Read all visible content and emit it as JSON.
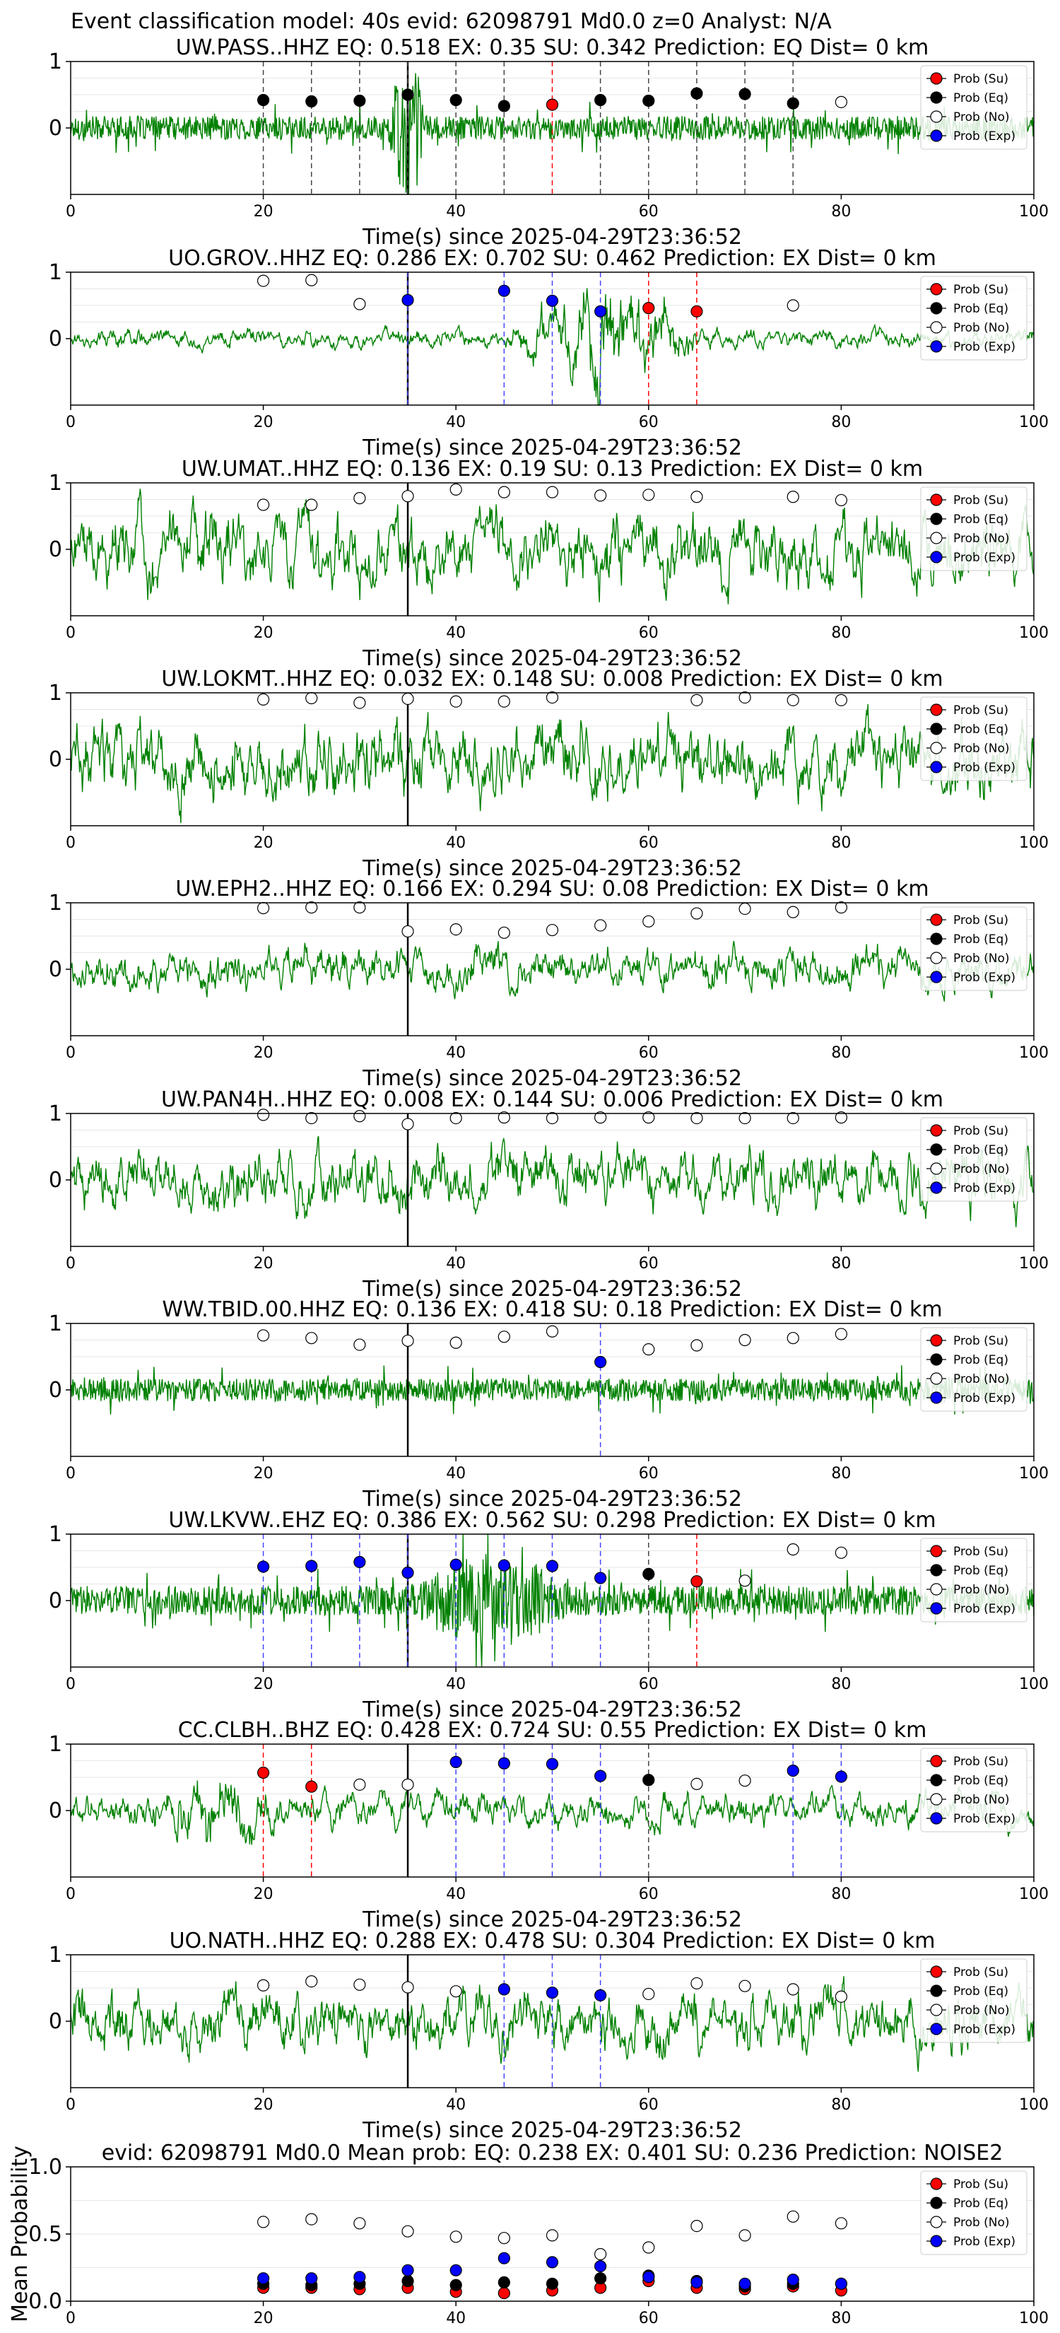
{
  "figure_title": "Event classification model: 40s evid: 62098791 Md0.0 z=0 Analyst: N/A",
  "colors": {
    "waveform": "#008000",
    "su": "#ff0000",
    "eq": "#000000",
    "no": "#ffffff",
    "exp": "#0000ff",
    "pick_line": "#000000"
  },
  "legend_entries": [
    "Prob (Su)",
    "Prob (Eq)",
    "Prob (No)",
    "Prob (Exp)"
  ],
  "chart_data": [
    {
      "type": "line+scatter",
      "title": "UW.PASS..HHZ   EQ: 0.518  EX: 0.35  SU: 0.342   Prediction: EQ    Dist= 0 km",
      "xlabel": "Time(s) since 2025-04-29T23:36:52",
      "xlim": [
        0,
        100
      ],
      "ylim": [
        -1,
        1
      ],
      "xticks": [
        "0",
        "20",
        "40",
        "60",
        "80",
        "100"
      ],
      "yticks": [
        "1",
        "0"
      ],
      "pick_time": 35,
      "noise_amp": 0.18,
      "noise_kind": "spiky",
      "burst": {
        "start": 33,
        "end": 37,
        "amp": 1.3
      },
      "points": [
        {
          "x": 20,
          "y": 0.42,
          "cls": "eq"
        },
        {
          "x": 25,
          "y": 0.4,
          "cls": "eq"
        },
        {
          "x": 30,
          "y": 0.41,
          "cls": "eq"
        },
        {
          "x": 35,
          "y": 0.5,
          "cls": "eq"
        },
        {
          "x": 40,
          "y": 0.42,
          "cls": "eq"
        },
        {
          "x": 45,
          "y": 0.33,
          "cls": "eq"
        },
        {
          "x": 50,
          "y": 0.35,
          "cls": "su"
        },
        {
          "x": 55,
          "y": 0.42,
          "cls": "eq"
        },
        {
          "x": 60,
          "y": 0.41,
          "cls": "eq"
        },
        {
          "x": 65,
          "y": 0.52,
          "cls": "eq"
        },
        {
          "x": 70,
          "y": 0.51,
          "cls": "eq"
        },
        {
          "x": 75,
          "y": 0.37,
          "cls": "eq"
        },
        {
          "x": 80,
          "y": 0.39,
          "cls": "no"
        }
      ]
    },
    {
      "type": "line+scatter",
      "title": "UO.GROV..HHZ   EQ: 0.286  EX: 0.702  SU: 0.462   Prediction: EX    Dist= 0 km",
      "xlabel": "Time(s) since 2025-04-29T23:36:52",
      "xlim": [
        0,
        100
      ],
      "ylim": [
        -1,
        1
      ],
      "xticks": [
        "0",
        "20",
        "40",
        "60",
        "80",
        "100"
      ],
      "yticks": [
        "1",
        "0"
      ],
      "pick_time": 35,
      "noise_amp": 0.14,
      "noise_kind": "smooth",
      "burst": {
        "start": 45,
        "end": 66,
        "amp": 0.95
      },
      "points": [
        {
          "x": 20,
          "y": 0.87,
          "cls": "no"
        },
        {
          "x": 25,
          "y": 0.88,
          "cls": "no"
        },
        {
          "x": 30,
          "y": 0.52,
          "cls": "no"
        },
        {
          "x": 35,
          "y": 0.58,
          "cls": "exp"
        },
        {
          "x": 45,
          "y": 0.72,
          "cls": "exp"
        },
        {
          "x": 50,
          "y": 0.57,
          "cls": "exp"
        },
        {
          "x": 55,
          "y": 0.41,
          "cls": "exp"
        },
        {
          "x": 60,
          "y": 0.46,
          "cls": "su"
        },
        {
          "x": 65,
          "y": 0.41,
          "cls": "su"
        },
        {
          "x": 75,
          "y": 0.5,
          "cls": "no"
        }
      ]
    },
    {
      "type": "line+scatter",
      "title": "UW.UMAT..HHZ   EQ: 0.136  EX: 0.19  SU: 0.13   Prediction: EX    Dist= 0 km",
      "xlabel": "Time(s) since 2025-04-29T23:36:52",
      "xlim": [
        0,
        100
      ],
      "ylim": [
        -1,
        1
      ],
      "xticks": [
        "0",
        "20",
        "40",
        "60",
        "80",
        "100"
      ],
      "yticks": [
        "1",
        "0"
      ],
      "pick_time": 35,
      "noise_amp": 0.55,
      "noise_kind": "smooth",
      "points": [
        {
          "x": 20,
          "y": 0.67,
          "cls": "no"
        },
        {
          "x": 25,
          "y": 0.67,
          "cls": "no"
        },
        {
          "x": 30,
          "y": 0.77,
          "cls": "no"
        },
        {
          "x": 35,
          "y": 0.8,
          "cls": "no"
        },
        {
          "x": 40,
          "y": 0.9,
          "cls": "no"
        },
        {
          "x": 45,
          "y": 0.86,
          "cls": "no"
        },
        {
          "x": 50,
          "y": 0.86,
          "cls": "no"
        },
        {
          "x": 55,
          "y": 0.81,
          "cls": "no"
        },
        {
          "x": 60,
          "y": 0.82,
          "cls": "no"
        },
        {
          "x": 65,
          "y": 0.79,
          "cls": "no"
        },
        {
          "x": 75,
          "y": 0.79,
          "cls": "no"
        },
        {
          "x": 80,
          "y": 0.74,
          "cls": "no"
        }
      ]
    },
    {
      "type": "line+scatter",
      "title": "UW.LOKMT..HHZ   EQ: 0.032  EX: 0.148  SU: 0.008   Prediction: EX    Dist= 0 km",
      "xlabel": "Time(s) since 2025-04-29T23:36:52",
      "xlim": [
        0,
        100
      ],
      "ylim": [
        -1,
        1
      ],
      "xticks": [
        "0",
        "20",
        "40",
        "60",
        "80",
        "100"
      ],
      "yticks": [
        "1",
        "0"
      ],
      "pick_time": 35,
      "noise_amp": 0.55,
      "noise_kind": "smooth",
      "points": [
        {
          "x": 20,
          "y": 0.9,
          "cls": "no"
        },
        {
          "x": 25,
          "y": 0.92,
          "cls": "no"
        },
        {
          "x": 30,
          "y": 0.85,
          "cls": "no"
        },
        {
          "x": 35,
          "y": 0.91,
          "cls": "no"
        },
        {
          "x": 40,
          "y": 0.87,
          "cls": "no"
        },
        {
          "x": 45,
          "y": 0.87,
          "cls": "no"
        },
        {
          "x": 50,
          "y": 0.93,
          "cls": "no"
        },
        {
          "x": 65,
          "y": 0.89,
          "cls": "no"
        },
        {
          "x": 70,
          "y": 0.93,
          "cls": "no"
        },
        {
          "x": 75,
          "y": 0.89,
          "cls": "no"
        },
        {
          "x": 80,
          "y": 0.89,
          "cls": "no"
        }
      ]
    },
    {
      "type": "line+scatter",
      "title": "UW.EPH2..HHZ   EQ: 0.166  EX: 0.294  SU: 0.08   Prediction: EX    Dist= 0 km",
      "xlabel": "Time(s) since 2025-04-29T23:36:52",
      "xlim": [
        0,
        100
      ],
      "ylim": [
        -1,
        1
      ],
      "xticks": [
        "0",
        "20",
        "40",
        "60",
        "80",
        "100"
      ],
      "yticks": [
        "1",
        "0"
      ],
      "pick_time": 35,
      "noise_amp": 0.32,
      "noise_kind": "smooth",
      "points": [
        {
          "x": 20,
          "y": 0.92,
          "cls": "no"
        },
        {
          "x": 25,
          "y": 0.93,
          "cls": "no"
        },
        {
          "x": 30,
          "y": 0.93,
          "cls": "no"
        },
        {
          "x": 35,
          "y": 0.57,
          "cls": "no"
        },
        {
          "x": 40,
          "y": 0.6,
          "cls": "no"
        },
        {
          "x": 45,
          "y": 0.55,
          "cls": "no"
        },
        {
          "x": 50,
          "y": 0.59,
          "cls": "no"
        },
        {
          "x": 55,
          "y": 0.66,
          "cls": "no"
        },
        {
          "x": 60,
          "y": 0.72,
          "cls": "no"
        },
        {
          "x": 65,
          "y": 0.84,
          "cls": "no"
        },
        {
          "x": 70,
          "y": 0.91,
          "cls": "no"
        },
        {
          "x": 75,
          "y": 0.86,
          "cls": "no"
        },
        {
          "x": 80,
          "y": 0.93,
          "cls": "no"
        }
      ]
    },
    {
      "type": "line+scatter",
      "title": "UW.PAN4H..HHZ   EQ: 0.008  EX: 0.144  SU: 0.006   Prediction: EX    Dist= 0 km",
      "xlabel": "Time(s) since 2025-04-29T23:36:52",
      "xlim": [
        0,
        100
      ],
      "ylim": [
        -1,
        1
      ],
      "xticks": [
        "0",
        "20",
        "40",
        "60",
        "80",
        "100"
      ],
      "yticks": [
        "1",
        "0"
      ],
      "pick_time": 35,
      "noise_amp": 0.45,
      "noise_kind": "smooth",
      "points": [
        {
          "x": 20,
          "y": 0.98,
          "cls": "no"
        },
        {
          "x": 25,
          "y": 0.93,
          "cls": "no"
        },
        {
          "x": 30,
          "y": 0.96,
          "cls": "no"
        },
        {
          "x": 35,
          "y": 0.84,
          "cls": "no"
        },
        {
          "x": 40,
          "y": 0.93,
          "cls": "no"
        },
        {
          "x": 45,
          "y": 0.94,
          "cls": "no"
        },
        {
          "x": 50,
          "y": 0.93,
          "cls": "no"
        },
        {
          "x": 55,
          "y": 0.94,
          "cls": "no"
        },
        {
          "x": 60,
          "y": 0.94,
          "cls": "no"
        },
        {
          "x": 65,
          "y": 0.93,
          "cls": "no"
        },
        {
          "x": 70,
          "y": 0.93,
          "cls": "no"
        },
        {
          "x": 75,
          "y": 0.93,
          "cls": "no"
        },
        {
          "x": 80,
          "y": 0.94,
          "cls": "no"
        }
      ]
    },
    {
      "type": "line+scatter",
      "title": "WW.TBID.00.HHZ   EQ: 0.136  EX: 0.418  SU: 0.18   Prediction: EX    Dist= 0 km",
      "xlabel": "Time(s) since 2025-04-29T23:36:52",
      "xlim": [
        0,
        100
      ],
      "ylim": [
        -1,
        1
      ],
      "xticks": [
        "0",
        "20",
        "40",
        "60",
        "80",
        "100"
      ],
      "yticks": [
        "1",
        "0"
      ],
      "pick_time": 35,
      "noise_amp": 0.17,
      "noise_kind": "spiky",
      "points": [
        {
          "x": 20,
          "y": 0.82,
          "cls": "no"
        },
        {
          "x": 25,
          "y": 0.78,
          "cls": "no"
        },
        {
          "x": 30,
          "y": 0.68,
          "cls": "no"
        },
        {
          "x": 35,
          "y": 0.74,
          "cls": "no"
        },
        {
          "x": 40,
          "y": 0.71,
          "cls": "no"
        },
        {
          "x": 45,
          "y": 0.8,
          "cls": "no"
        },
        {
          "x": 50,
          "y": 0.88,
          "cls": "no"
        },
        {
          "x": 55,
          "y": 0.42,
          "cls": "exp"
        },
        {
          "x": 60,
          "y": 0.61,
          "cls": "no"
        },
        {
          "x": 65,
          "y": 0.67,
          "cls": "no"
        },
        {
          "x": 70,
          "y": 0.75,
          "cls": "no"
        },
        {
          "x": 75,
          "y": 0.78,
          "cls": "no"
        },
        {
          "x": 80,
          "y": 0.84,
          "cls": "no"
        }
      ]
    },
    {
      "type": "line+scatter",
      "title": "UW.LKVW..EHZ   EQ: 0.386  EX: 0.562  SU: 0.298   Prediction: EX    Dist= 0 km",
      "xlabel": "Time(s) since 2025-04-29T23:36:52",
      "xlim": [
        0,
        100
      ],
      "ylim": [
        -1,
        1
      ],
      "xticks": [
        "0",
        "20",
        "40",
        "60",
        "80",
        "100"
      ],
      "yticks": [
        "1",
        "0"
      ],
      "pick_time": 35,
      "noise_amp": 0.22,
      "noise_kind": "spiky",
      "burst": {
        "start": 35,
        "end": 52,
        "amp": 0.75
      },
      "points": [
        {
          "x": 20,
          "y": 0.51,
          "cls": "exp"
        },
        {
          "x": 25,
          "y": 0.52,
          "cls": "exp"
        },
        {
          "x": 30,
          "y": 0.58,
          "cls": "exp"
        },
        {
          "x": 35,
          "y": 0.42,
          "cls": "exp"
        },
        {
          "x": 40,
          "y": 0.54,
          "cls": "exp"
        },
        {
          "x": 45,
          "y": 0.53,
          "cls": "exp"
        },
        {
          "x": 50,
          "y": 0.52,
          "cls": "exp"
        },
        {
          "x": 55,
          "y": 0.34,
          "cls": "exp"
        },
        {
          "x": 60,
          "y": 0.4,
          "cls": "eq"
        },
        {
          "x": 65,
          "y": 0.29,
          "cls": "su"
        },
        {
          "x": 70,
          "y": 0.3,
          "cls": "no"
        },
        {
          "x": 75,
          "y": 0.77,
          "cls": "no"
        },
        {
          "x": 80,
          "y": 0.72,
          "cls": "no"
        }
      ]
    },
    {
      "type": "line+scatter",
      "title": "CC.CLBH..BHZ   EQ: 0.428  EX: 0.724  SU: 0.55   Prediction: EX    Dist= 0 km",
      "xlabel": "Time(s) since 2025-04-29T23:36:52",
      "xlim": [
        0,
        100
      ],
      "ylim": [
        -1,
        1
      ],
      "xticks": [
        "0",
        "20",
        "40",
        "60",
        "80",
        "100"
      ],
      "yticks": [
        "1",
        "0"
      ],
      "pick_time": 35,
      "noise_amp": 0.25,
      "noise_kind": "smooth",
      "burst": {
        "start": 8,
        "end": 22,
        "amp": 0.65
      },
      "points": [
        {
          "x": 20,
          "y": 0.57,
          "cls": "su"
        },
        {
          "x": 25,
          "y": 0.36,
          "cls": "su"
        },
        {
          "x": 30,
          "y": 0.39,
          "cls": "no"
        },
        {
          "x": 35,
          "y": 0.39,
          "cls": "no"
        },
        {
          "x": 40,
          "y": 0.73,
          "cls": "exp"
        },
        {
          "x": 45,
          "y": 0.71,
          "cls": "exp"
        },
        {
          "x": 50,
          "y": 0.7,
          "cls": "exp"
        },
        {
          "x": 55,
          "y": 0.52,
          "cls": "exp"
        },
        {
          "x": 60,
          "y": 0.46,
          "cls": "eq"
        },
        {
          "x": 65,
          "y": 0.4,
          "cls": "no"
        },
        {
          "x": 70,
          "y": 0.45,
          "cls": "no"
        },
        {
          "x": 75,
          "y": 0.6,
          "cls": "exp"
        },
        {
          "x": 80,
          "y": 0.51,
          "cls": "exp"
        }
      ]
    },
    {
      "type": "line+scatter",
      "title": "UO.NATH..HHZ   EQ: 0.288  EX: 0.478  SU: 0.304   Prediction: EX    Dist= 0 km",
      "xlabel": "Time(s) since 2025-04-29T23:36:52",
      "xlim": [
        0,
        100
      ],
      "ylim": [
        -1,
        1
      ],
      "xticks": [
        "0",
        "20",
        "40",
        "60",
        "80",
        "100"
      ],
      "yticks": [
        "1",
        "0"
      ],
      "pick_time": 35,
      "noise_amp": 0.45,
      "noise_kind": "smooth",
      "points": [
        {
          "x": 20,
          "y": 0.54,
          "cls": "no"
        },
        {
          "x": 25,
          "y": 0.6,
          "cls": "no"
        },
        {
          "x": 30,
          "y": 0.55,
          "cls": "no"
        },
        {
          "x": 35,
          "y": 0.51,
          "cls": "no"
        },
        {
          "x": 40,
          "y": 0.45,
          "cls": "no"
        },
        {
          "x": 45,
          "y": 0.48,
          "cls": "exp"
        },
        {
          "x": 50,
          "y": 0.43,
          "cls": "exp"
        },
        {
          "x": 55,
          "y": 0.39,
          "cls": "exp"
        },
        {
          "x": 60,
          "y": 0.41,
          "cls": "no"
        },
        {
          "x": 65,
          "y": 0.57,
          "cls": "no"
        },
        {
          "x": 70,
          "y": 0.53,
          "cls": "no"
        },
        {
          "x": 75,
          "y": 0.48,
          "cls": "no"
        },
        {
          "x": 80,
          "y": 0.37,
          "cls": "no"
        }
      ]
    },
    {
      "type": "scatter",
      "title": "evid: 62098791  Md0.0   Mean prob:   EQ: 0.238  EX: 0.401  SU: 0.236   Prediction: NOISE2",
      "ylabel": "Mean Probability",
      "xlim": [
        0,
        100
      ],
      "ylim": [
        0,
        1
      ],
      "xticks": [
        "0",
        "20",
        "40",
        "60",
        "80",
        "100"
      ],
      "yticks": [
        "1.0",
        "0.5",
        "0.0"
      ],
      "series": [
        {
          "name": "Prob (Su)",
          "cls": "su",
          "x": [
            20,
            25,
            30,
            35,
            40,
            45,
            50,
            55,
            60,
            65,
            70,
            75,
            80
          ],
          "y": [
            0.1,
            0.1,
            0.09,
            0.1,
            0.07,
            0.06,
            0.08,
            0.1,
            0.15,
            0.1,
            0.09,
            0.11,
            0.08
          ]
        },
        {
          "name": "Prob (Eq)",
          "cls": "eq",
          "x": [
            20,
            25,
            30,
            35,
            40,
            45,
            50,
            55,
            60,
            65,
            70,
            75,
            80
          ],
          "y": [
            0.13,
            0.12,
            0.13,
            0.15,
            0.12,
            0.14,
            0.13,
            0.17,
            0.19,
            0.15,
            0.11,
            0.13,
            0.13
          ]
        },
        {
          "name": "Prob (No)",
          "cls": "no",
          "x": [
            20,
            25,
            30,
            35,
            40,
            45,
            50,
            55,
            60,
            65,
            70,
            75,
            80
          ],
          "y": [
            0.59,
            0.61,
            0.58,
            0.52,
            0.48,
            0.47,
            0.49,
            0.35,
            0.4,
            0.56,
            0.49,
            0.63,
            0.58
          ]
        },
        {
          "name": "Prob (Exp)",
          "cls": "exp",
          "x": [
            20,
            25,
            30,
            35,
            40,
            45,
            50,
            55,
            60,
            65,
            70,
            75,
            80
          ],
          "y": [
            0.17,
            0.17,
            0.18,
            0.23,
            0.23,
            0.32,
            0.29,
            0.26,
            0.18,
            0.14,
            0.13,
            0.16,
            0.13
          ]
        }
      ]
    }
  ]
}
